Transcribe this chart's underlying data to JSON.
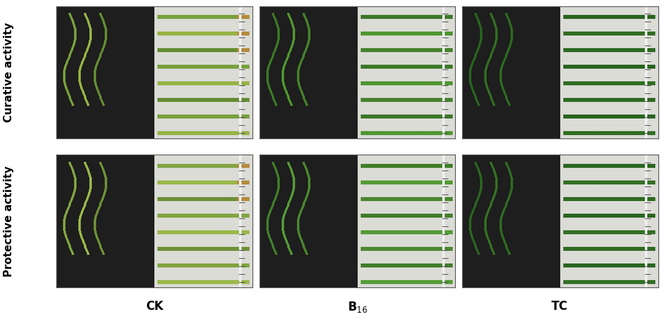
{
  "figure_width": 9.45,
  "figure_height": 4.54,
  "dpi": 100,
  "background_color": "#ffffff",
  "row_labels": [
    "Curative activity",
    "Protective activity"
  ],
  "col_labels": [
    "CK",
    "B$_{16}$",
    "TC"
  ],
  "grid_rows": 2,
  "grid_cols": 3,
  "label_fontsize": 11,
  "col_label_fontsize": 12,
  "col_label_fontweight": "bold",
  "outer_border_color": "#cccccc",
  "panel_border_color": "#888888",
  "row_label_rotation": 90,
  "image_paths": [
    [
      "panel_top_ck.jpg",
      "panel_top_b16.jpg",
      "panel_top_tc.jpg"
    ],
    [
      "panel_bot_ck.jpg",
      "panel_bot_b16.jpg",
      "panel_bot_tc.jpg"
    ]
  ],
  "panels": {
    "top_ck_bg": "#6b8e3e",
    "top_b16_bg": "#3a5a1a",
    "top_tc_bg": "#2d4a12",
    "bot_ck_bg": "#8aab3c",
    "bot_b16_bg": "#4a7a20",
    "bot_tc_bg": "#3a6a18"
  }
}
